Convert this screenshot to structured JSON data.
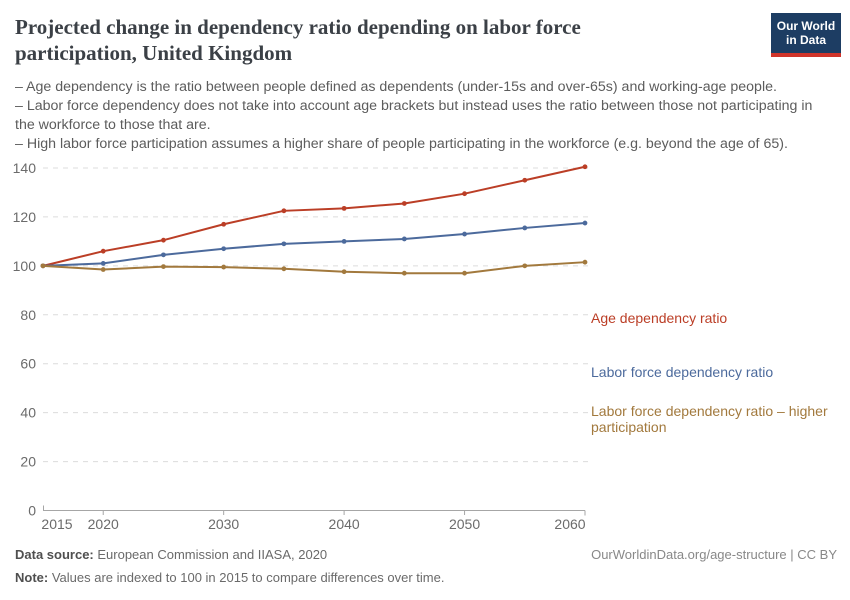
{
  "header": {
    "title": "Projected change in dependency ratio depending on labor force participation, United Kingdom",
    "logo": {
      "line1": "Our World",
      "line2": "in Data",
      "bg_color": "#1d3d63",
      "bar_color": "#d0342a"
    }
  },
  "subtitle": {
    "line1": "– Age dependency is the ratio between people defined as dependents (under-15s and over-65s) and working-age people.",
    "line2": "– Labor force dependency does not take into account age brackets but instead uses the ratio between those not participating in the workforce to those that are.",
    "line3": "– High labor force participation assumes a higher share of people participating in the workforce (e.g. beyond the age of 65)."
  },
  "chart_data": {
    "type": "line",
    "x": [
      2015,
      2020,
      2025,
      2030,
      2035,
      2040,
      2045,
      2050,
      2055,
      2060
    ],
    "series": [
      {
        "name": "Age dependency ratio",
        "color": "#bb3e26",
        "values": [
          100,
          106,
          110.5,
          117,
          122.5,
          123.5,
          125.5,
          129.5,
          135,
          140.5
        ]
      },
      {
        "name": "Labor force dependency ratio",
        "color": "#4c6a9c",
        "values": [
          100,
          101,
          104.5,
          107,
          109,
          110,
          111,
          113,
          115.5,
          117.5
        ]
      },
      {
        "name": "Labor force dependency ratio – higher participation",
        "color": "#a2793d",
        "values": [
          100,
          98.5,
          99.7,
          99.5,
          98.8,
          97.6,
          97,
          97,
          100,
          101.5
        ]
      }
    ],
    "title": "Projected change in dependency ratio depending on labor force participation, United Kingdom",
    "xlabel": "",
    "ylabel": "",
    "ylim": [
      0,
      140
    ],
    "yticks": [
      0,
      20,
      40,
      60,
      80,
      100,
      120,
      140
    ],
    "xticks": [
      2015,
      2020,
      2030,
      2040,
      2050,
      2060
    ],
    "grid": "horizontal-dashed",
    "legend_position": "right-of-lines",
    "grid_color": "#dcdcdc",
    "axis_color": "#a6a6a6",
    "tick_label_color": "#6b6b6b"
  },
  "footer": {
    "datasource_label": "Data source:",
    "datasource_value": " European Commission and IIASA, 2020",
    "note_label": "Note:",
    "note_value": " Values are indexed to 100 in 2015 to compare differences over time.",
    "link": "OurWorldinData.org/age-structure | CC BY"
  }
}
